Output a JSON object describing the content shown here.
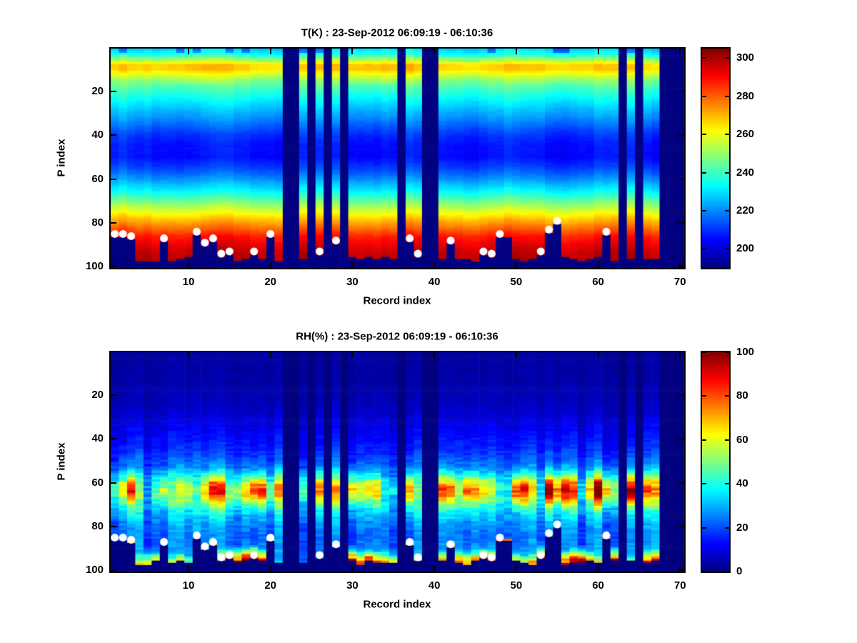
{
  "window": {
    "background": "#ffffff"
  },
  "chart_data": [
    {
      "type": "heatmap",
      "title": "T(K) : 23-Sep-2012 06:09:19 - 06:10:36",
      "xlabel": "Record index",
      "ylabel": "P index",
      "n_records": 70,
      "n_levels": 100,
      "x_ticks": [
        10,
        20,
        30,
        40,
        50,
        60,
        70
      ],
      "y_ticks": [
        20,
        40,
        60,
        80,
        100
      ],
      "colormap": "jet",
      "value_range": [
        190,
        305
      ],
      "colorbar_ticks": [
        200,
        220,
        240,
        260,
        280,
        300
      ],
      "grid": false,
      "missing_records": [
        22,
        23,
        25,
        27,
        29,
        36,
        39,
        40,
        63,
        65,
        68,
        69,
        70
      ],
      "profile_p": [
        1,
        3,
        6,
        8,
        10,
        12,
        15,
        20,
        25,
        30,
        35,
        40,
        45,
        50,
        55,
        60,
        65,
        70,
        74,
        78,
        82,
        86,
        90,
        94,
        100
      ],
      "profile_value": [
        228,
        234,
        252,
        266,
        266,
        258,
        248,
        239,
        231,
        224,
        217,
        210,
        206,
        206,
        212,
        221,
        232,
        245,
        257,
        268,
        278,
        288,
        294,
        298,
        301
      ],
      "surface_default": 96,
      "surface_overrides": {
        "1": 86,
        "2": 86,
        "3": 87,
        "7": 88,
        "11": 85,
        "12": 90,
        "13": 88,
        "14": 95,
        "15": 94,
        "18": 94,
        "20": 86,
        "26": 94,
        "28": 89,
        "37": 88,
        "38": 95,
        "42": 89,
        "46": 94,
        "47": 95,
        "48": 86,
        "49": 86,
        "53": 94,
        "54": 84,
        "55": 80,
        "61": 85
      },
      "surface_markers": [
        [
          1,
          85
        ],
        [
          2,
          85
        ],
        [
          3,
          86
        ],
        [
          7,
          87
        ],
        [
          11,
          84
        ],
        [
          12,
          89
        ],
        [
          13,
          87
        ],
        [
          14,
          94
        ],
        [
          15,
          93
        ],
        [
          18,
          93
        ],
        [
          20,
          85
        ],
        [
          26,
          93
        ],
        [
          28,
          88
        ],
        [
          37,
          87
        ],
        [
          38,
          94
        ],
        [
          42,
          88
        ],
        [
          46,
          93
        ],
        [
          47,
          94
        ],
        [
          48,
          85
        ],
        [
          53,
          93
        ],
        [
          54,
          83
        ],
        [
          55,
          79
        ],
        [
          61,
          84
        ]
      ],
      "marker_color": "#ffffff",
      "missing_color_value": "colormap-minimum"
    },
    {
      "type": "heatmap",
      "title": "RH(%) : 23-Sep-2012 06:09:19 - 06:10:36",
      "xlabel": "Record index",
      "ylabel": "P index",
      "n_records": 70,
      "n_levels": 100,
      "x_ticks": [
        10,
        20,
        30,
        40,
        50,
        60,
        70
      ],
      "y_ticks": [
        20,
        40,
        60,
        80,
        100
      ],
      "colormap": "jet",
      "value_range": [
        0,
        100
      ],
      "colorbar_ticks": [
        0,
        20,
        40,
        60,
        80,
        100
      ],
      "grid": false,
      "missing_records": [
        22,
        23,
        25,
        27,
        29,
        36,
        39,
        40,
        63,
        65,
        68,
        69,
        70
      ],
      "profile_p": [
        1,
        15,
        25,
        32,
        40,
        47,
        53,
        57,
        60,
        63,
        66,
        69,
        73,
        78,
        84,
        90,
        96,
        100
      ],
      "profile_value": [
        3,
        4,
        6,
        9,
        13,
        17,
        25,
        40,
        55,
        64,
        60,
        48,
        35,
        27,
        23,
        24,
        26,
        26
      ],
      "surface_default": 96,
      "surface_overrides": {
        "1": 86,
        "2": 86,
        "3": 87,
        "7": 88,
        "11": 85,
        "12": 90,
        "13": 88,
        "14": 95,
        "15": 94,
        "18": 94,
        "20": 86,
        "26": 94,
        "28": 89,
        "37": 88,
        "38": 95,
        "42": 89,
        "46": 94,
        "47": 95,
        "48": 86,
        "49": 86,
        "53": 94,
        "54": 84,
        "55": 80,
        "61": 85
      },
      "surface_rh_default": 28,
      "surface_rh_overrides": {
        "3": 62,
        "4": 70,
        "5": 66,
        "6": 55,
        "8": 55,
        "9": 60,
        "10": 50,
        "12": 45,
        "13": 75,
        "14": 82,
        "15": 80,
        "16": 92,
        "17": 100,
        "18": 96,
        "19": 80,
        "20": 50,
        "29": 60,
        "30": 85,
        "31": 90,
        "32": 86,
        "33": 78,
        "34": 70,
        "35": 55,
        "37": 55,
        "38": 60,
        "41": 65,
        "42": 72,
        "43": 80,
        "44": 78,
        "45": 72,
        "46": 76,
        "47": 80,
        "48": 75,
        "49": 70,
        "50": 62,
        "51": 55,
        "52": 78,
        "53": 85,
        "56": 90,
        "57": 100,
        "58": 95,
        "59": 68,
        "60": 62,
        "61": 82,
        "62": 86,
        "64": 45,
        "66": 85,
        "67": 90
      },
      "surface_markers": [
        [
          1,
          85
        ],
        [
          2,
          85
        ],
        [
          3,
          86
        ],
        [
          7,
          87
        ],
        [
          11,
          84
        ],
        [
          12,
          89
        ],
        [
          13,
          87
        ],
        [
          14,
          94
        ],
        [
          15,
          93
        ],
        [
          18,
          93
        ],
        [
          20,
          85
        ],
        [
          26,
          93
        ],
        [
          28,
          88
        ],
        [
          37,
          87
        ],
        [
          38,
          94
        ],
        [
          42,
          88
        ],
        [
          46,
          93
        ],
        [
          47,
          94
        ],
        [
          48,
          85
        ],
        [
          53,
          93
        ],
        [
          54,
          83
        ],
        [
          55,
          79
        ],
        [
          61,
          84
        ]
      ],
      "marker_color": "#ffffff",
      "missing_color_value": "colormap-minimum"
    }
  ]
}
